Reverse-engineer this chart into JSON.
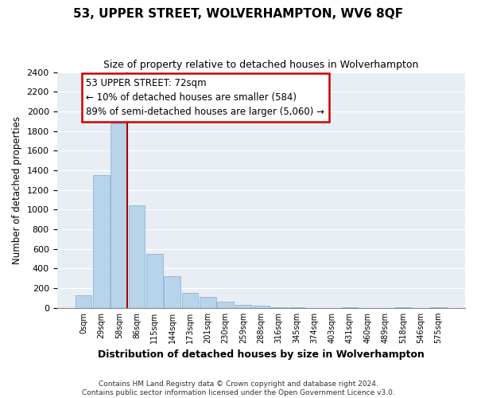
{
  "title": "53, UPPER STREET, WOLVERHAMPTON, WV6 8QF",
  "subtitle": "Size of property relative to detached houses in Wolverhampton",
  "xlabel": "Distribution of detached houses by size in Wolverhampton",
  "ylabel": "Number of detached properties",
  "bar_color": "#b8d4ea",
  "bar_edge_color": "#8ab4d4",
  "plot_bg_color": "#e8eef4",
  "fig_bg_color": "#ffffff",
  "grid_color": "#ffffff",
  "bin_labels": [
    "0sqm",
    "29sqm",
    "58sqm",
    "86sqm",
    "115sqm",
    "144sqm",
    "173sqm",
    "201sqm",
    "230sqm",
    "259sqm",
    "288sqm",
    "316sqm",
    "345sqm",
    "374sqm",
    "403sqm",
    "431sqm",
    "460sqm",
    "489sqm",
    "518sqm",
    "546sqm",
    "575sqm"
  ],
  "bar_heights": [
    125,
    1350,
    1880,
    1040,
    550,
    325,
    155,
    110,
    60,
    30,
    20,
    5,
    5,
    0,
    0,
    5,
    0,
    0,
    5,
    0,
    5
  ],
  "ylim": [
    0,
    2400
  ],
  "yticks": [
    0,
    200,
    400,
    600,
    800,
    1000,
    1200,
    1400,
    1600,
    1800,
    2000,
    2200,
    2400
  ],
  "vline_bin": 2,
  "vline_color": "#aa0000",
  "annotation_title": "53 UPPER STREET: 72sqm",
  "annotation_line1": "← 10% of detached houses are smaller (584)",
  "annotation_line2": "89% of semi-detached houses are larger (5,060) →",
  "annotation_box_color": "#ffffff",
  "annotation_box_edge": "#cc0000",
  "footer_line1": "Contains HM Land Registry data © Crown copyright and database right 2024.",
  "footer_line2": "Contains public sector information licensed under the Open Government Licence v3.0."
}
